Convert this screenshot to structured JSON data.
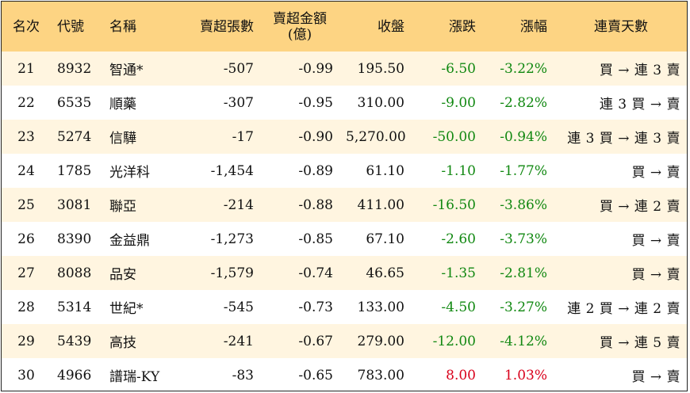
{
  "columns": [
    "名次",
    "代號",
    "名稱",
    "賣超張數",
    "賣超金額",
    "(億)",
    "收盤",
    "漲跌",
    "漲幅",
    "連賣天數"
  ],
  "colors": {
    "header_bg": "#fdd483",
    "stripe_bg": "#fff5e0",
    "up": "#d9001b",
    "down": "#118811"
  },
  "rows": [
    {
      "rank": "21",
      "code": "8932",
      "name": "智通*",
      "shares": "-507",
      "amount": "-0.99",
      "close": "195.50",
      "change": "-6.50",
      "pct": "-3.22%",
      "streak": "買 → 連 3 賣",
      "dir": "down"
    },
    {
      "rank": "22",
      "code": "6535",
      "name": "順藥",
      "shares": "-307",
      "amount": "-0.95",
      "close": "310.00",
      "change": "-9.00",
      "pct": "-2.82%",
      "streak": "連 3 買 → 賣",
      "dir": "down"
    },
    {
      "rank": "23",
      "code": "5274",
      "name": "信驊",
      "shares": "-17",
      "amount": "-0.90",
      "close": "5,270.00",
      "change": "-50.00",
      "pct": "-0.94%",
      "streak": "連 3 買 → 連 3 賣",
      "dir": "down"
    },
    {
      "rank": "24",
      "code": "1785",
      "name": "光洋科",
      "shares": "-1,454",
      "amount": "-0.89",
      "close": "61.10",
      "change": "-1.10",
      "pct": "-1.77%",
      "streak": "買 → 賣",
      "dir": "down"
    },
    {
      "rank": "25",
      "code": "3081",
      "name": "聯亞",
      "shares": "-214",
      "amount": "-0.88",
      "close": "411.00",
      "change": "-16.50",
      "pct": "-3.86%",
      "streak": "買 → 連 2 賣",
      "dir": "down"
    },
    {
      "rank": "26",
      "code": "8390",
      "name": "金益鼎",
      "shares": "-1,273",
      "amount": "-0.85",
      "close": "67.10",
      "change": "-2.60",
      "pct": "-3.73%",
      "streak": "買 → 賣",
      "dir": "down"
    },
    {
      "rank": "27",
      "code": "8088",
      "name": "品安",
      "shares": "-1,579",
      "amount": "-0.74",
      "close": "46.65",
      "change": "-1.35",
      "pct": "-2.81%",
      "streak": "買 → 賣",
      "dir": "down"
    },
    {
      "rank": "28",
      "code": "5314",
      "name": "世紀*",
      "shares": "-545",
      "amount": "-0.73",
      "close": "133.00",
      "change": "-4.50",
      "pct": "-3.27%",
      "streak": "連 2 買 → 連 2 賣",
      "dir": "down"
    },
    {
      "rank": "29",
      "code": "5439",
      "name": "高技",
      "shares": "-241",
      "amount": "-0.67",
      "close": "279.00",
      "change": "-12.00",
      "pct": "-4.12%",
      "streak": "買 → 連 5 賣",
      "dir": "down"
    },
    {
      "rank": "30",
      "code": "4966",
      "name": "譜瑞-KY",
      "shares": "-83",
      "amount": "-0.65",
      "close": "783.00",
      "change": "8.00",
      "pct": "1.03%",
      "streak": "買 → 賣",
      "dir": "up"
    }
  ]
}
